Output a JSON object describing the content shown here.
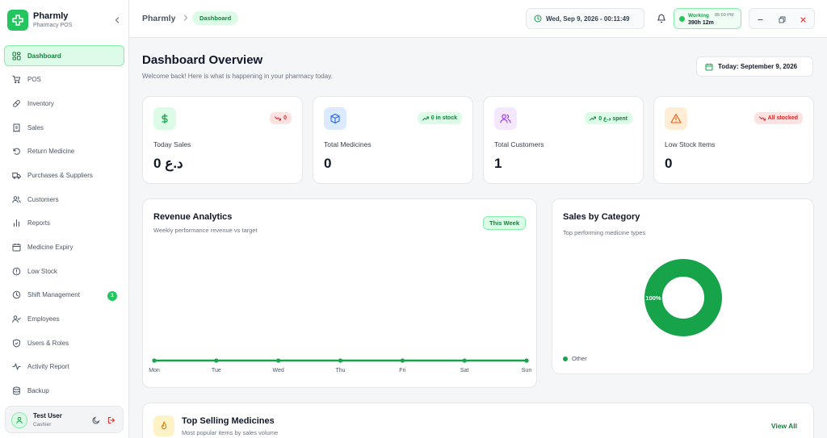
{
  "app": {
    "name": "Pharmly",
    "subtitle": "Pharmacy POS"
  },
  "sidebar": {
    "items": [
      {
        "label": "Dashboard",
        "icon": "dashboard-grid-icon",
        "active": true
      },
      {
        "label": "POS",
        "icon": "cart-icon"
      },
      {
        "label": "Inventory",
        "icon": "pill-icon"
      },
      {
        "label": "Sales",
        "icon": "receipt-icon"
      },
      {
        "label": "Return Medicine",
        "icon": "return-arrow-icon"
      },
      {
        "label": "Purchases & Suppliers",
        "icon": "truck-icon"
      },
      {
        "label": "Customers",
        "icon": "users-icon"
      },
      {
        "label": "Reports",
        "icon": "bar-chart-icon"
      },
      {
        "label": "Medicine Expiry",
        "icon": "calendar-icon"
      },
      {
        "label": "Low Stock",
        "icon": "alert-circle-icon"
      },
      {
        "label": "Shift Management",
        "icon": "clock-icon",
        "badge": "1"
      },
      {
        "label": "Employees",
        "icon": "user-check-icon"
      },
      {
        "label": "Users & Roles",
        "icon": "shield-icon"
      },
      {
        "label": "Activity Report",
        "icon": "activity-icon"
      },
      {
        "label": "Backup",
        "icon": "database-icon"
      }
    ],
    "user": {
      "name": "Test User",
      "role": "Cashier"
    }
  },
  "topbar": {
    "breadcrumb_root": "Pharmly",
    "breadcrumb_current": "Dashboard",
    "datetime": "Wed, Sep 9, 2026 - 00:11:49",
    "shift": {
      "status": "Working",
      "start_time": "05:59 PM",
      "duration": "390h 12m"
    }
  },
  "main": {
    "title": "Dashboard Overview",
    "subtitle": "Welcome back! Here is what is happening in your pharmacy today.",
    "today_label": "Today: September 9, 2026"
  },
  "stats": [
    {
      "label": "Today Sales",
      "value": "0 د.ع",
      "badge": "0",
      "trend": "down",
      "icon": "dollar-icon",
      "icon_bg": "#dcfce7",
      "icon_color": "#16a34a"
    },
    {
      "label": "Total Medicines",
      "value": "0",
      "badge": "0 in stock",
      "trend": "up",
      "icon": "box-icon",
      "icon_bg": "#dbeafe",
      "icon_color": "#2563eb"
    },
    {
      "label": "Total Customers",
      "value": "1",
      "badge": "0 د.ع spent",
      "trend": "up",
      "icon": "users-icon",
      "icon_bg": "#f3e8ff",
      "icon_color": "#9333ea"
    },
    {
      "label": "Low Stock Items",
      "value": "0",
      "badge": "All stocked",
      "trend": "down",
      "icon": "warning-triangle-icon",
      "icon_bg": "#ffedd5",
      "icon_color": "#ea580c"
    }
  ],
  "revenue": {
    "title": "Revenue Analytics",
    "subtitle": "Weekly performance revenue vs target",
    "period": "This Week"
  },
  "category": {
    "title": "Sales by Category",
    "subtitle": "Top performing medicine types"
  },
  "top_selling": {
    "title": "Top Selling Medicines",
    "subtitle": "Most popular items by sales volume",
    "view_all": "View All"
  },
  "chart_data": [
    {
      "type": "line",
      "categories": [
        "Mon",
        "Tue",
        "Wed",
        "Thu",
        "Fri",
        "Sat",
        "Sun"
      ],
      "series": [
        {
          "values": [
            0,
            0,
            0,
            0,
            0,
            0,
            0
          ]
        }
      ],
      "color": "#16a34a"
    },
    {
      "type": "pie",
      "donut": true,
      "categories": [
        "Other"
      ],
      "values": [
        100
      ],
      "data_labels": [
        "100%"
      ],
      "colors": [
        "#16a34a"
      ],
      "legend": "bottom-left"
    }
  ]
}
